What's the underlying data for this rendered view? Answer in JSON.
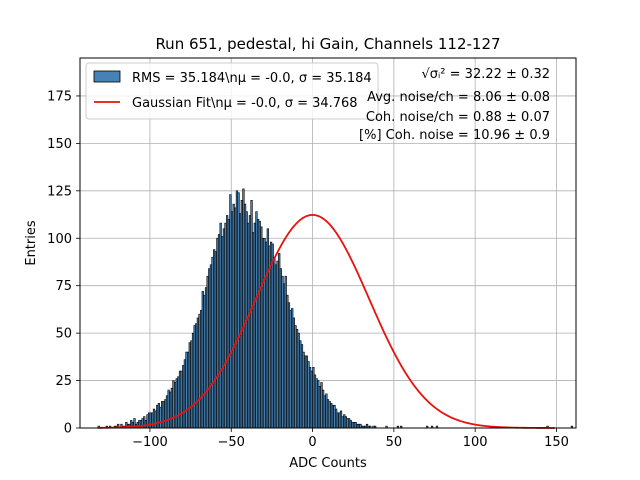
{
  "chart_data": {
    "type": "bar",
    "title": "Run 651, pedestal, hi Gain, Channels 112-127",
    "xlabel": "ADC Counts",
    "ylabel": "Entries",
    "xlim": [
      -143,
      162
    ],
    "ylim": [
      0,
      195
    ],
    "xticks": [
      -100,
      -50,
      0,
      50,
      100,
      150
    ],
    "yticks": [
      0,
      25,
      50,
      75,
      100,
      125,
      150,
      175
    ],
    "grid": true,
    "legend_position": "top-left",
    "colors": {
      "hist_fill": "#4682b4",
      "hist_edge": "#000000",
      "fit_line": "#e8120c",
      "grid": "#b0b0b0"
    },
    "series": [
      {
        "name": "RMS = 35.184\\nμ = -0.0, σ = 35.184",
        "kind": "histogram",
        "bin_width": 1,
        "bins_range": [
          -132,
          149
        ],
        "counts": [
          1,
          0,
          0,
          0,
          0,
          1,
          0,
          1,
          0,
          0,
          1,
          1,
          2,
          0,
          2,
          1,
          1,
          3,
          2,
          2,
          4,
          3,
          5,
          2,
          3,
          4,
          4,
          5,
          6,
          4,
          7,
          8,
          8,
          8,
          10,
          9,
          12,
          13,
          11,
          14,
          14,
          15,
          17,
          20,
          19,
          21,
          25,
          24,
          26,
          27,
          30,
          30,
          33,
          36,
          40,
          40,
          45,
          46,
          50,
          54,
          55,
          58,
          60,
          62,
          72,
          70,
          74,
          80,
          84,
          86,
          90,
          94,
          93,
          100,
          102,
          108,
          101,
          105,
          108,
          112,
          110,
          123,
          114,
          118,
          116,
          125,
          124,
          113,
          120,
          126,
          118,
          114,
          108,
          112,
          120,
          103,
          108,
          114,
          110,
          109,
          106,
          100,
          100,
          98,
          105,
          96,
          98,
          97,
          90,
          86,
          88,
          92,
          84,
          80,
          76,
          80,
          70,
          66,
          62,
          63,
          58,
          54,
          52,
          50,
          46,
          44,
          40,
          38,
          38,
          35,
          32,
          30,
          32,
          28,
          26,
          25,
          22,
          24,
          20,
          17,
          18,
          15,
          14,
          13,
          12,
          12,
          10,
          8,
          8,
          9,
          6,
          7,
          6,
          5,
          5,
          4,
          3,
          3,
          3,
          2,
          2,
          2,
          1,
          1,
          1,
          2,
          1,
          1,
          0,
          1,
          1,
          0,
          0,
          0,
          0,
          0,
          0,
          1,
          0,
          0,
          0,
          0,
          0,
          0,
          1,
          0,
          1,
          0,
          0,
          0,
          0,
          0,
          0,
          0,
          0,
          0,
          0,
          0,
          0,
          0,
          0,
          0,
          1,
          0,
          0,
          1,
          0,
          0,
          1,
          0,
          0,
          0,
          0,
          0,
          0,
          0,
          0,
          0,
          0,
          0,
          0,
          0,
          0,
          0,
          0,
          0,
          0,
          0,
          0,
          0,
          0,
          0,
          0,
          0,
          0,
          0,
          0,
          0,
          0,
          0,
          0,
          0,
          0,
          0,
          0,
          0,
          0,
          0,
          0,
          0,
          0,
          0,
          0,
          0,
          0,
          0,
          0,
          0,
          0,
          0,
          0,
          0,
          0,
          0,
          0,
          0,
          0,
          0,
          0,
          0,
          0,
          0,
          0,
          0,
          0,
          0,
          1,
          0,
          0,
          0,
          0,
          0,
          0,
          0,
          0,
          0,
          0,
          0,
          0,
          0,
          0,
          1
        ]
      },
      {
        "name": "Gaussian Fit\\nμ = -0.0, σ = 34.768",
        "kind": "line",
        "amplitude": 112.3,
        "mu": -0.0,
        "sigma": 34.768,
        "x_range": [
          -132,
          149
        ]
      }
    ],
    "annotations": [
      "√σᵢ² = 32.22 ± 0.32",
      "Avg. noise/ch = 8.06 ± 0.08",
      "Coh. noise/ch = 0.88 ± 0.07",
      "[%] Coh. noise = 10.96 ± 0.9"
    ]
  }
}
